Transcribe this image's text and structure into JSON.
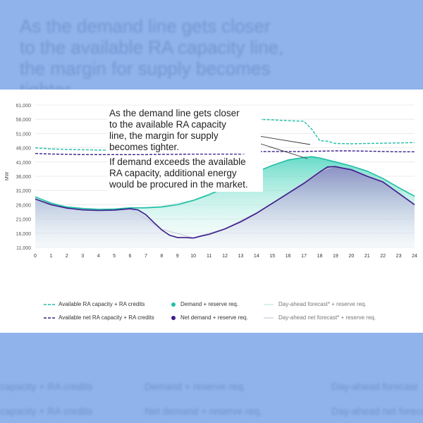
{
  "callout": {
    "line1": "As the demand line gets closer",
    "line2": "to the available RA capacity",
    "line3": "line, the margin for supply",
    "line4": "becomes tighter.",
    "line5": "If demand exceeds the available",
    "line6": "RA capacity, additional energy",
    "line7": "would be procured in the market."
  },
  "legend": {
    "available_ra": "Available RA capacity + RA credits",
    "available_net_ra": "Available net RA capacity + RA credits",
    "demand": "Demand + reserve req.",
    "net_demand": "Net demand + reserve req.",
    "dayahead_forecast": "Day-ahead forecast* + reserve req.",
    "dayahead_net_forecast": "Day-ahead net forecast* + reserve req."
  },
  "background": {
    "text": "As the demand line gets closer to the available RA capacity line, the margin for supply becomes tighter.",
    "legend1": "capacity + RA credits",
    "legend2": "Demand + reserve req.",
    "legend3": "Day-ahead forecast",
    "legend4": "capacity + RA credits",
    "legend5": "Net demand + reserve req.",
    "legend6": "Day-ahead net forecast"
  },
  "colors": {
    "ra": "#1fbfa6",
    "net": "#3a1d8c",
    "forecast": "#b9e8de",
    "net_forecast": "#c9c7d9"
  },
  "chart_data": {
    "type": "area",
    "ylabel": "MW",
    "xlim": [
      0,
      24
    ],
    "ylim": [
      11000,
      61000
    ],
    "y_ticks": [
      11000,
      16000,
      21000,
      26000,
      31000,
      36000,
      41000,
      46000,
      51000,
      56000,
      61000
    ],
    "y_tick_labels": [
      "11,000",
      "16,000",
      "21,000",
      "26,000",
      "31,000",
      "36,000",
      "41,000",
      "46,000",
      "51,000",
      "56,000",
      "61,000"
    ],
    "x_ticks": [
      0,
      1,
      2,
      3,
      4,
      5,
      6,
      7,
      8,
      9,
      10,
      11,
      12,
      13,
      14,
      15,
      16,
      17,
      18,
      19,
      20,
      21,
      22,
      23,
      24
    ],
    "grid": true,
    "legend_position": "bottom",
    "series": [
      {
        "name": "Available RA capacity + RA credits",
        "style": "dashed",
        "x": [
          0,
          1,
          2,
          3,
          4,
          5,
          6,
          7,
          8,
          9,
          10,
          11,
          12,
          13,
          14,
          15,
          16,
          17,
          17.5,
          18,
          18.5,
          19,
          20,
          21,
          22,
          23,
          24
        ],
        "values": [
          46000,
          45600,
          45400,
          45300,
          45200,
          45100,
          45100,
          45100,
          45200,
          45300,
          45400,
          45500,
          45500,
          45600,
          56000,
          55800,
          55500,
          55300,
          52500,
          48500,
          48300,
          47500,
          47400,
          47500,
          47600,
          47700,
          47800
        ]
      },
      {
        "name": "Available net RA capacity + RA credits",
        "style": "dashed",
        "x": [
          0,
          1,
          2,
          3,
          4,
          5,
          6,
          7,
          8,
          9,
          10,
          11,
          12,
          13,
          14,
          15,
          16,
          17,
          18,
          19,
          20,
          21,
          22,
          23,
          24
        ],
        "values": [
          44000,
          43800,
          43700,
          43600,
          43600,
          43600,
          43600,
          43600,
          43700,
          43700,
          43800,
          43800,
          43800,
          43800,
          44700,
          44700,
          44700,
          44700,
          44800,
          44900,
          44900,
          44800,
          44700,
          44600,
          44600
        ]
      },
      {
        "name": "Demand + reserve req.",
        "style": "area",
        "x": [
          0,
          1,
          2,
          3,
          4,
          5,
          6,
          7,
          8,
          9,
          10,
          11,
          12,
          13,
          14,
          15,
          16,
          17,
          17.5,
          18,
          19,
          20,
          21,
          22,
          23,
          24
        ],
        "values": [
          28800,
          26500,
          25200,
          24700,
          24400,
          24500,
          24900,
          24900,
          25200,
          26000,
          27500,
          29500,
          32000,
          34800,
          37500,
          39800,
          41700,
          42600,
          42800,
          42400,
          41000,
          39600,
          37800,
          35200,
          32000,
          29000
        ]
      },
      {
        "name": "Net demand + reserve req.",
        "style": "area",
        "x": [
          0,
          1,
          2,
          3,
          4,
          5,
          6,
          6.5,
          7,
          7.5,
          8,
          8.5,
          9,
          9.5,
          10,
          10.5,
          11,
          12,
          13,
          14,
          15,
          16,
          17,
          17.5,
          18,
          18.5,
          19,
          19.5,
          20,
          21,
          22,
          23,
          24
        ],
        "values": [
          28000,
          26000,
          24800,
          24200,
          24000,
          24100,
          24600,
          24200,
          22500,
          19800,
          17200,
          15300,
          14500,
          14500,
          14300,
          15000,
          15600,
          17500,
          20000,
          23000,
          26500,
          30000,
          33500,
          35500,
          37500,
          39300,
          39400,
          38800,
          38300,
          36000,
          34000,
          30000,
          26000
        ]
      },
      {
        "name": "Day-ahead forecast* + reserve req.",
        "style": "thin",
        "x": [
          0,
          2,
          4,
          6,
          8,
          10,
          12,
          14,
          16,
          17.5,
          19,
          21,
          23,
          24
        ],
        "values": [
          28600,
          25100,
          24300,
          24800,
          25400,
          27600,
          32200,
          37600,
          41900,
          43100,
          41200,
          37900,
          32100,
          29100
        ]
      },
      {
        "name": "Day-ahead net forecast* + reserve req.",
        "style": "thin",
        "x": [
          0,
          2,
          4,
          6,
          8,
          10,
          12,
          14,
          16,
          18,
          19,
          20,
          22,
          24
        ],
        "values": [
          27900,
          24700,
          24100,
          24500,
          17400,
          14400,
          17600,
          23200,
          30200,
          37700,
          39500,
          38400,
          34200,
          26200
        ]
      }
    ]
  }
}
